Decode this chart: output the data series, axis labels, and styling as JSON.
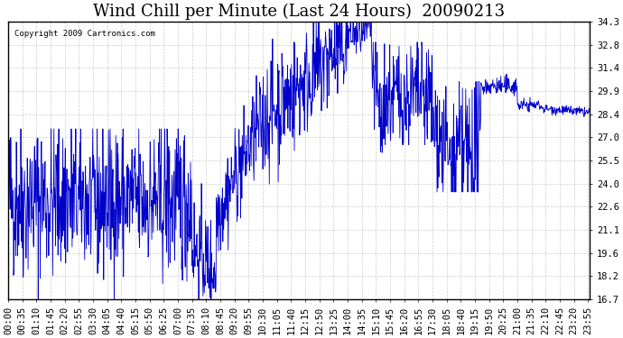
{
  "title": "Wind Chill per Minute (Last 24 Hours)  20090213",
  "copyright_text": "Copyright 2009 Cartronics.com",
  "line_color": "#0000cc",
  "bg_color": "#ffffff",
  "plot_bg_color": "#ffffff",
  "grid_color": "#cccccc",
  "ylim": [
    16.7,
    34.3
  ],
  "yticks": [
    16.7,
    18.2,
    19.6,
    21.1,
    22.6,
    24.0,
    25.5,
    27.0,
    28.4,
    29.9,
    31.4,
    32.8,
    34.3
  ],
  "xlabel": "",
  "ylabel": "",
  "title_fontsize": 13,
  "tick_fontsize": 7.5
}
